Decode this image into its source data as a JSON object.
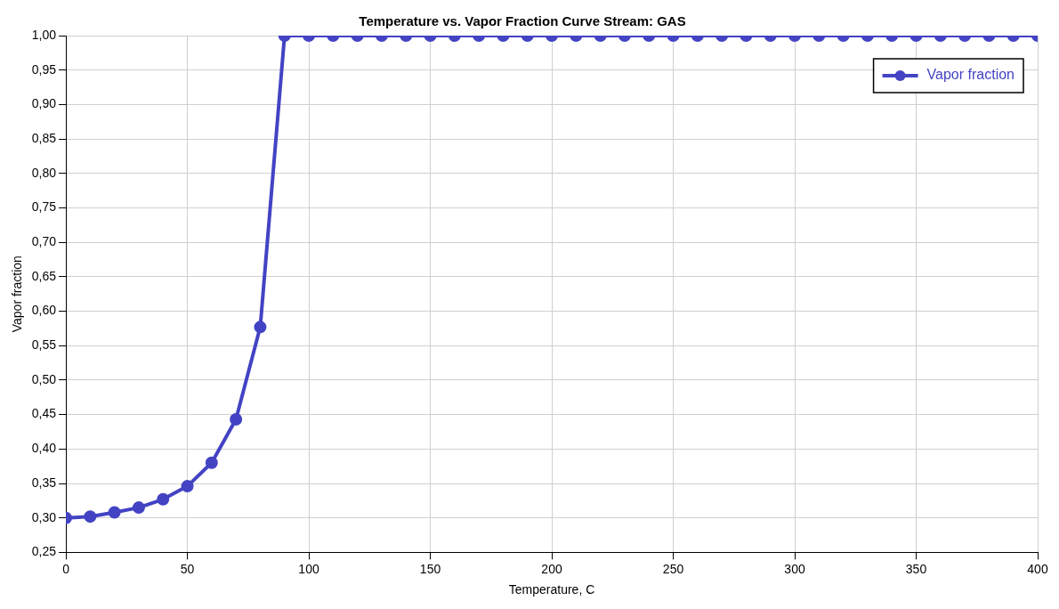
{
  "chart_data": {
    "type": "line",
    "title": "Temperature vs. Vapor Fraction Curve Stream: GAS",
    "xlabel": "Temperature, C",
    "ylabel": "Vapor fraction",
    "x": [
      0,
      10,
      20,
      30,
      40,
      50,
      60,
      70,
      80,
      90,
      100,
      110,
      120,
      130,
      140,
      150,
      160,
      170,
      180,
      190,
      200,
      210,
      220,
      230,
      240,
      250,
      260,
      270,
      280,
      290,
      300,
      310,
      320,
      330,
      340,
      350,
      360,
      370,
      380,
      390,
      400
    ],
    "series": [
      {
        "name": "Vapor fraction",
        "color": "#4343c4",
        "values": [
          0.3,
          0.302,
          0.308,
          0.315,
          0.327,
          0.346,
          0.38,
          0.443,
          0.577,
          1.0,
          1.0,
          1.0,
          1.0,
          1.0,
          1.0,
          1.0,
          1.0,
          1.0,
          1.0,
          1.0,
          1.0,
          1.0,
          1.0,
          1.0,
          1.0,
          1.0,
          1.0,
          1.0,
          1.0,
          1.0,
          1.0,
          1.0,
          1.0,
          1.0,
          1.0,
          1.0,
          1.0,
          1.0,
          1.0,
          1.0,
          1.0
        ]
      }
    ],
    "xlim": [
      0,
      400
    ],
    "xticks": [
      0,
      50,
      100,
      150,
      200,
      250,
      300,
      350,
      400
    ],
    "ylim": [
      0.25,
      1.0
    ],
    "yticks": [
      {
        "value": 0.25,
        "label": "0,25"
      },
      {
        "value": 0.3,
        "label": "0,30"
      },
      {
        "value": 0.35,
        "label": "0,35"
      },
      {
        "value": 0.4,
        "label": "0,40"
      },
      {
        "value": 0.45,
        "label": "0,45"
      },
      {
        "value": 0.5,
        "label": "0,50"
      },
      {
        "value": 0.55,
        "label": "0,55"
      },
      {
        "value": 0.6,
        "label": "0,60"
      },
      {
        "value": 0.65,
        "label": "0,65"
      },
      {
        "value": 0.7,
        "label": "0,70"
      },
      {
        "value": 0.75,
        "label": "0,75"
      },
      {
        "value": 0.8,
        "label": "0,80"
      },
      {
        "value": 0.85,
        "label": "0,85"
      },
      {
        "value": 0.9,
        "label": "0,90"
      },
      {
        "value": 0.95,
        "label": "0,95"
      },
      {
        "value": 1.0,
        "label": "1,00"
      }
    ],
    "grid": true,
    "legend": "top right",
    "marker": "circle",
    "line_style": "solid"
  }
}
